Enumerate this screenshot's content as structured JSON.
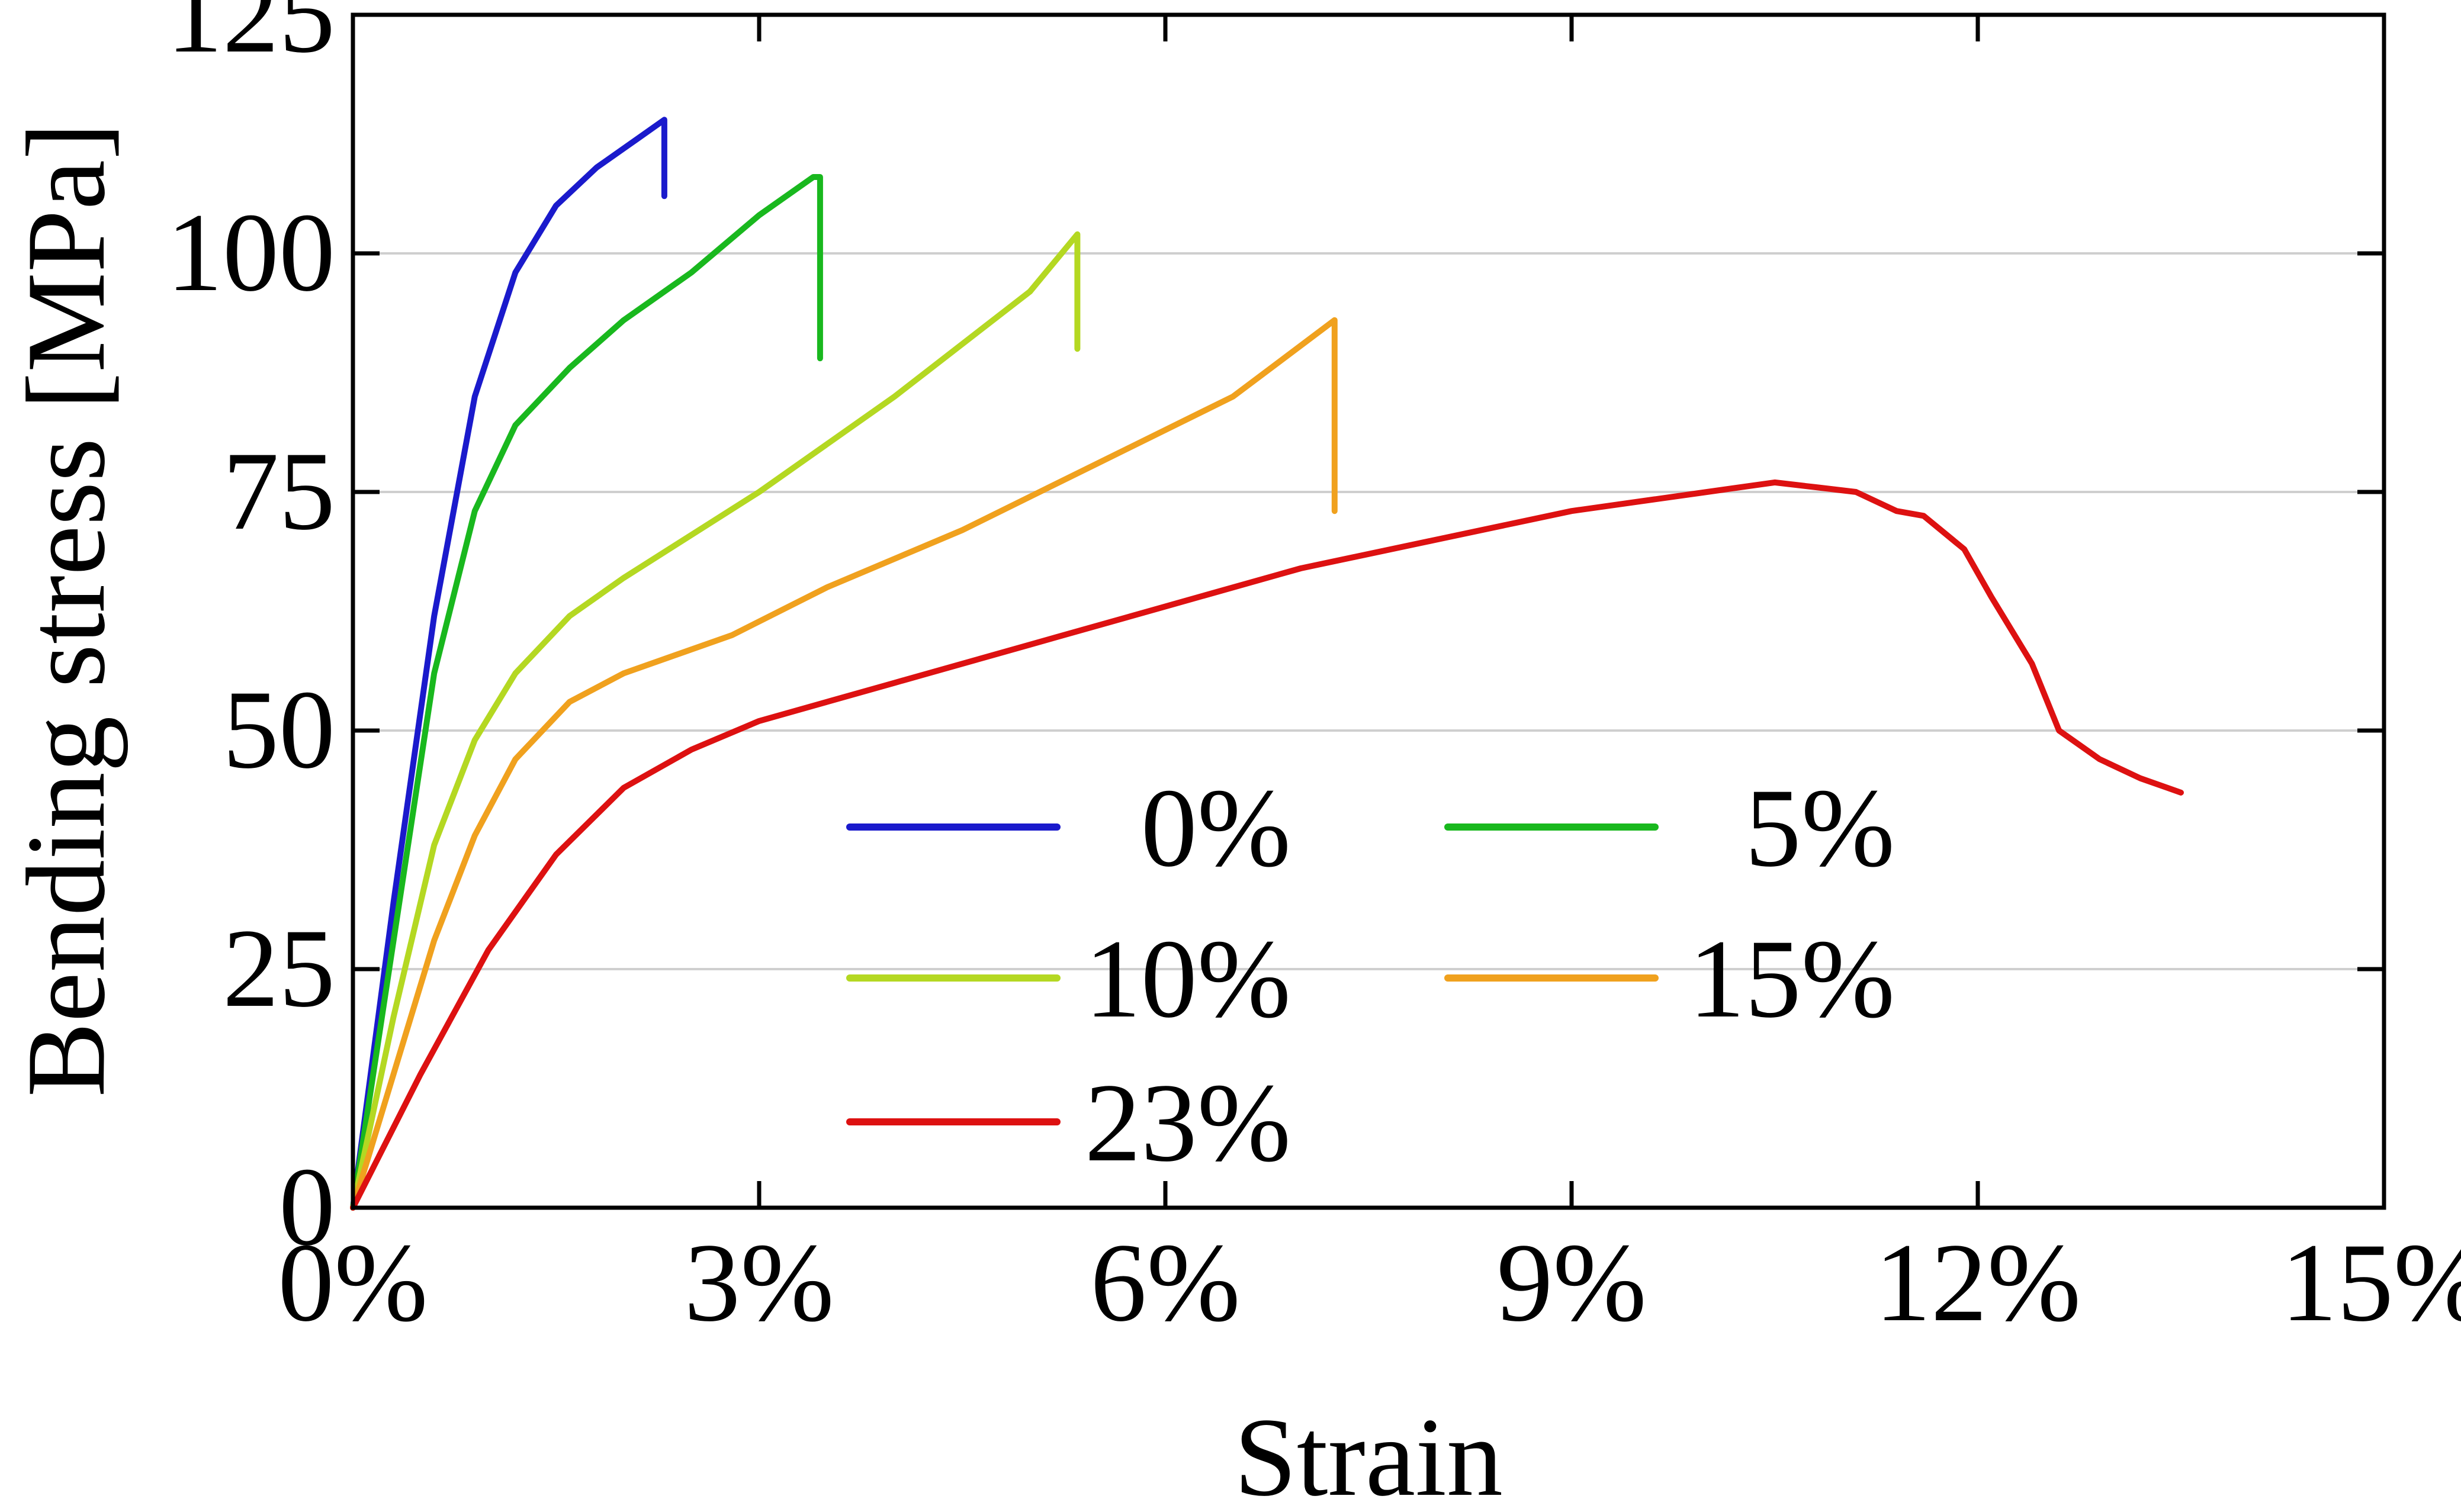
{
  "chart_data": {
    "type": "line",
    "title": "",
    "xlabel": "Strain",
    "ylabel": "Bending stress [MPa]",
    "xlim": [
      0,
      15
    ],
    "ylim": [
      0,
      125
    ],
    "x_unit": "%",
    "xticks": [
      0,
      3,
      6,
      9,
      12,
      15
    ],
    "xtick_labels": [
      "0%",
      "3%",
      "6%",
      "9%",
      "12%",
      "15%"
    ],
    "yticks": [
      0,
      25,
      50,
      75,
      100,
      125
    ],
    "ytick_labels": [
      "0",
      "25",
      "50",
      "75",
      "100",
      "125"
    ],
    "grid": "horizontal",
    "legend_position": "center",
    "series": [
      {
        "name": "0%",
        "color": "#1a1acc",
        "points": [
          [
            0,
            0
          ],
          [
            0.3,
            32
          ],
          [
            0.6,
            62
          ],
          [
            0.9,
            85
          ],
          [
            1.2,
            98
          ],
          [
            1.5,
            105
          ],
          [
            1.8,
            109
          ],
          [
            2.1,
            112
          ],
          [
            2.3,
            114
          ],
          [
            2.3,
            106
          ]
        ]
      },
      {
        "name": "5%",
        "color": "#19b81e",
        "points": [
          [
            0,
            0
          ],
          [
            0.3,
            28
          ],
          [
            0.6,
            56
          ],
          [
            0.9,
            73
          ],
          [
            1.2,
            82
          ],
          [
            1.6,
            88
          ],
          [
            2.0,
            93
          ],
          [
            2.5,
            98
          ],
          [
            3.0,
            104
          ],
          [
            3.4,
            108
          ],
          [
            3.45,
            108
          ],
          [
            3.45,
            89
          ]
        ]
      },
      {
        "name": "10%",
        "color": "#b4d822",
        "points": [
          [
            0,
            0
          ],
          [
            0.3,
            20
          ],
          [
            0.6,
            38
          ],
          [
            0.9,
            49
          ],
          [
            1.2,
            56
          ],
          [
            1.6,
            62
          ],
          [
            2.0,
            66
          ],
          [
            3.0,
            75
          ],
          [
            4.0,
            85
          ],
          [
            5.0,
            96
          ],
          [
            5.35,
            102
          ],
          [
            5.35,
            90
          ]
        ]
      },
      {
        "name": "15%",
        "color": "#f0a11e",
        "points": [
          [
            0,
            0
          ],
          [
            0.3,
            14
          ],
          [
            0.6,
            28
          ],
          [
            0.9,
            39
          ],
          [
            1.2,
            47
          ],
          [
            1.6,
            53
          ],
          [
            2.0,
            56
          ],
          [
            2.8,
            60
          ],
          [
            3.5,
            65
          ],
          [
            4.5,
            71
          ],
          [
            5.5,
            78
          ],
          [
            6.5,
            85
          ],
          [
            7.25,
            93
          ],
          [
            7.25,
            73
          ]
        ]
      },
      {
        "name": "23%",
        "color": "#dd1111",
        "points": [
          [
            0,
            0
          ],
          [
            0.5,
            14
          ],
          [
            1.0,
            27
          ],
          [
            1.5,
            37
          ],
          [
            2.0,
            44
          ],
          [
            2.5,
            48
          ],
          [
            3.0,
            51
          ],
          [
            4.0,
            55
          ],
          [
            5.0,
            59
          ],
          [
            6.0,
            63
          ],
          [
            7.0,
            67
          ],
          [
            8.0,
            70
          ],
          [
            9.0,
            73
          ],
          [
            10.0,
            75
          ],
          [
            10.5,
            76
          ],
          [
            10.8,
            75.5
          ],
          [
            11.1,
            75
          ],
          [
            11.4,
            73
          ],
          [
            11.6,
            72.5
          ],
          [
            11.9,
            69
          ],
          [
            12.1,
            64
          ],
          [
            12.4,
            57
          ],
          [
            12.6,
            50
          ],
          [
            12.9,
            47
          ],
          [
            13.2,
            45
          ],
          [
            13.4,
            44
          ],
          [
            13.5,
            43.5
          ]
        ]
      }
    ]
  }
}
